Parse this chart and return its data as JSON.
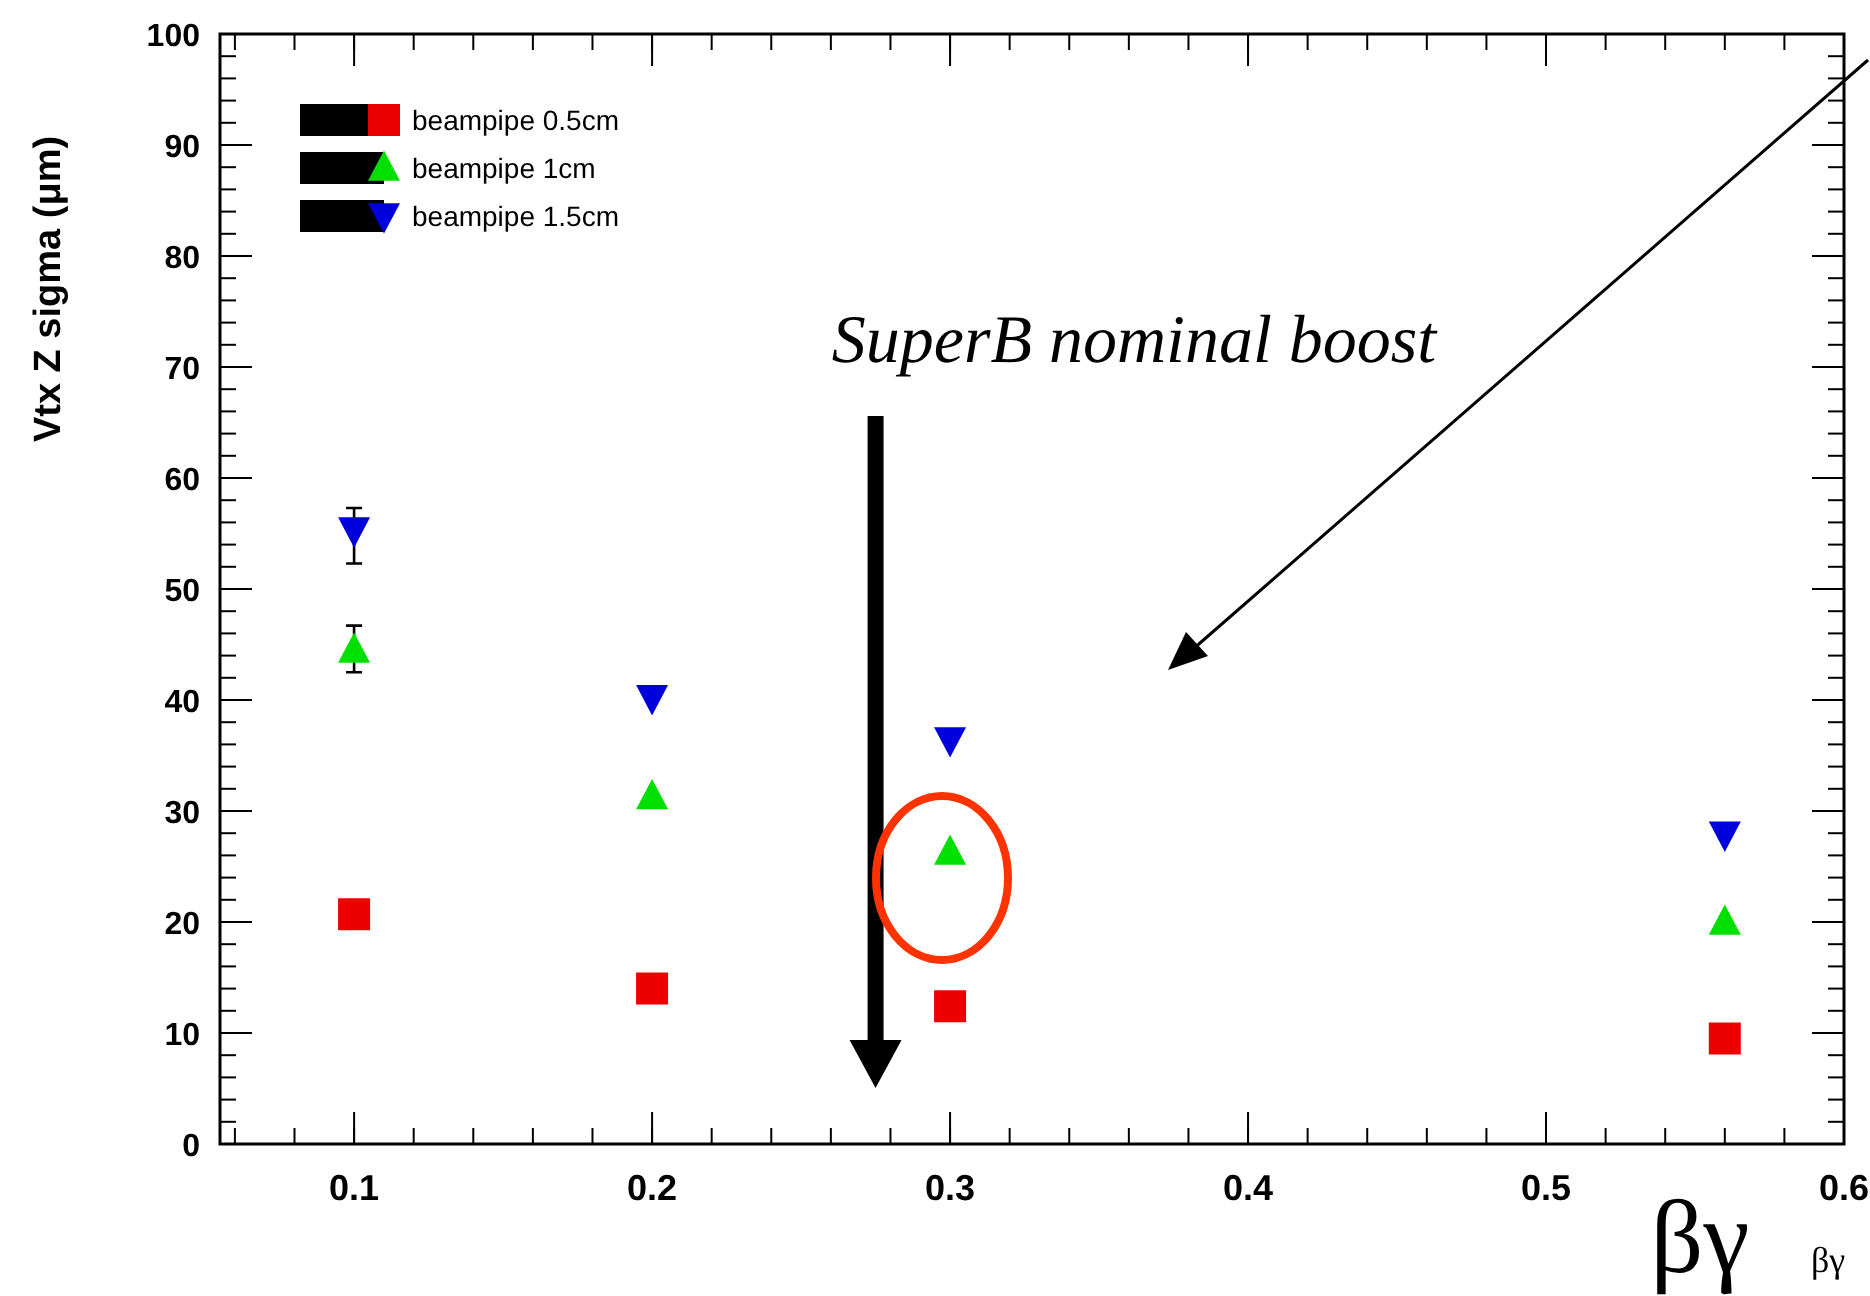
{
  "chart_data": {
    "type": "scatter",
    "xlabel": "βγ",
    "ylabel": "Vtx Z sigma (μm)",
    "x": [
      0.1,
      0.2,
      0.3,
      0.56
    ],
    "series": [
      {
        "name": "beampipe 0.5cm",
        "color": "#ee0000",
        "marker": "square",
        "values": [
          20.7,
          14,
          12.4,
          9.5
        ],
        "errors": [
          null,
          null,
          null,
          null
        ]
      },
      {
        "name": "beampipe 1cm",
        "color": "#00e000",
        "marker": "triangle",
        "values": [
          44.5,
          31.3,
          26.3,
          20
        ],
        "errors": [
          [
            42.5,
            46.7
          ],
          null,
          null,
          null
        ]
      },
      {
        "name": "beampipe 1.5cm",
        "color": "#0000dd",
        "marker": "triangle-down",
        "values": [
          55.3,
          40.2,
          36.4,
          27.9
        ],
        "errors": [
          [
            52.3,
            57.3
          ],
          null,
          null,
          null
        ]
      }
    ],
    "xlim": [
      0.055,
      0.6
    ],
    "xticks": [
      0.1,
      0.2,
      0.3,
      0.4,
      0.5,
      0.6
    ],
    "ylim": [
      0,
      100
    ],
    "yticks": [
      0,
      10,
      20,
      30,
      40,
      50,
      60,
      70,
      80,
      90,
      100
    ],
    "grid": false,
    "legend": "top left",
    "annotations": [
      "SuperB nominal boost",
      "βγ"
    ]
  }
}
